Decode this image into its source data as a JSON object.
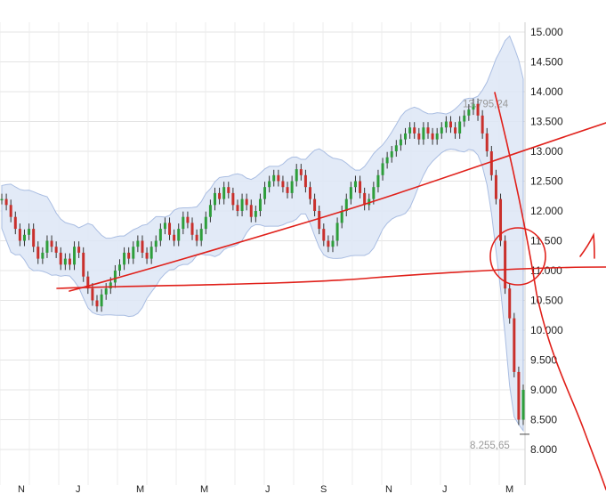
{
  "chart_data": {
    "type": "candlestick",
    "y_axis_ticks": [
      "15.000",
      "14.500",
      "14.000",
      "13.500",
      "13.000",
      "12.500",
      "12.000",
      "11.500",
      "11.000",
      "10.500",
      "10.000",
      "9.500",
      "9.000",
      "8.500",
      "8.000"
    ],
    "y_tick_values": [
      15000,
      14500,
      14000,
      13500,
      13000,
      12500,
      12000,
      11500,
      11000,
      10500,
      10000,
      9500,
      9000,
      8500,
      8000
    ],
    "ylim": [
      7900,
      15100
    ],
    "x_axis_ticks": [
      "N",
      "J",
      "M",
      "M",
      "J",
      "S",
      "N",
      "J",
      "M"
    ],
    "annotations": {
      "high_label": "13.795,24",
      "low_label": "8.255,65",
      "high_value": 13795.24,
      "low_value": 8255.65
    },
    "series": [
      {
        "values": [
          12200,
          12100,
          11900,
          11700,
          11500,
          11600,
          11700,
          11400,
          11200,
          11300,
          11500,
          11400,
          11300,
          11100,
          11200,
          11100,
          11400,
          11300,
          10900,
          10700,
          10500,
          10400,
          10600,
          10700,
          10800,
          11000,
          11100,
          11300,
          11200,
          11400,
          11500,
          11300,
          11200,
          11400,
          11500,
          11700,
          11800,
          11600,
          11500,
          11700,
          11900,
          11800,
          11600,
          11500,
          11700,
          11900,
          12100,
          12300,
          12200,
          12400,
          12300,
          12100,
          12000,
          12200,
          12100,
          11900,
          12000,
          12200,
          12400,
          12500,
          12600,
          12500,
          12400,
          12300,
          12500,
          12700,
          12600,
          12400,
          12200,
          12000,
          11700,
          11500,
          11400,
          11500,
          11800,
          12000,
          12200,
          12400,
          12500,
          12300,
          12100,
          12200,
          12400,
          12600,
          12800,
          12900,
          13000,
          13100,
          13200,
          13300,
          13400,
          13300,
          13200,
          13400,
          13300,
          13200,
          13300,
          13400,
          13500,
          13400,
          13300,
          13500,
          13600,
          13700,
          13795,
          13600,
          13300,
          13000,
          12600,
          12200,
          11500,
          10700,
          10200,
          9300,
          8500,
          9000
        ]
      }
    ]
  }
}
